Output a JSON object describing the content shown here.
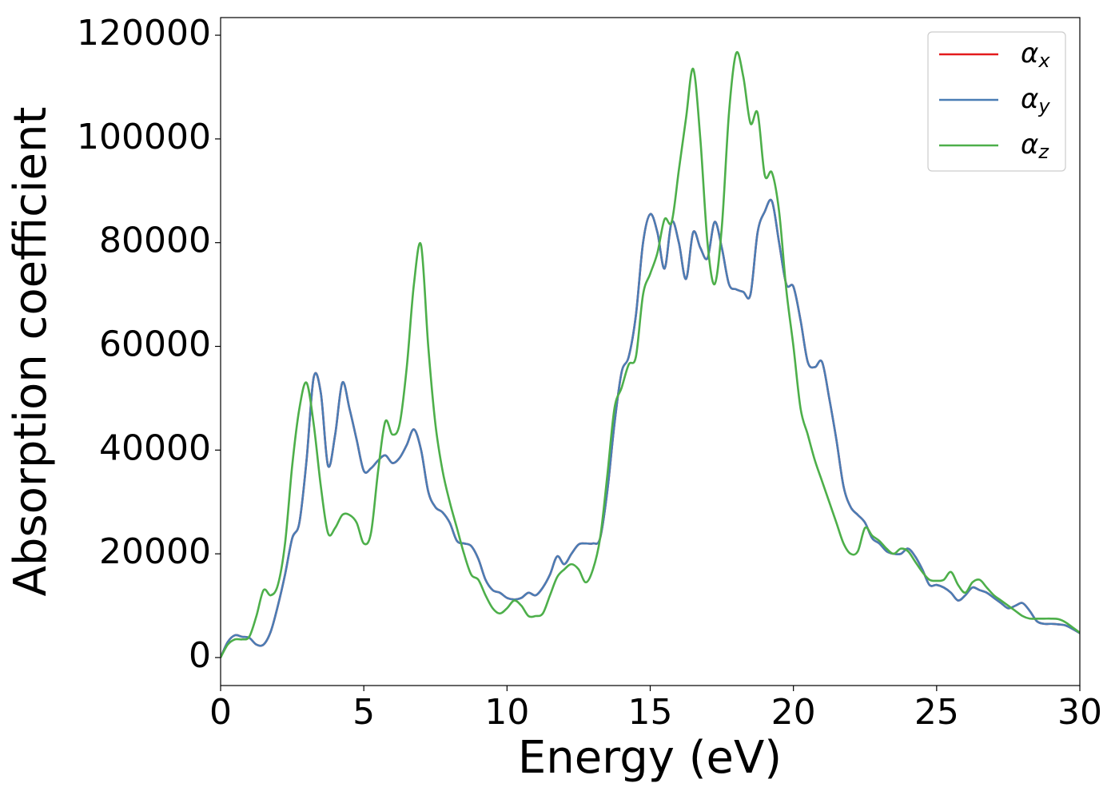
{
  "chart_data": {
    "type": "line",
    "xlabel": "Energy (eV)",
    "ylabel": "Absorption coefficient",
    "x": [
      0,
      0.25,
      0.5,
      0.75,
      1,
      1.25,
      1.5,
      1.75,
      2,
      2.25,
      2.5,
      2.75,
      3,
      3.25,
      3.5,
      3.75,
      4,
      4.25,
      4.5,
      4.75,
      5,
      5.25,
      5.5,
      5.75,
      6,
      6.25,
      6.5,
      6.75,
      7,
      7.25,
      7.5,
      7.75,
      8,
      8.25,
      8.5,
      8.75,
      9,
      9.25,
      9.5,
      9.75,
      10,
      10.25,
      10.5,
      10.75,
      11,
      11.25,
      11.5,
      11.75,
      12,
      12.25,
      12.5,
      12.75,
      13,
      13.25,
      13.5,
      13.75,
      14,
      14.25,
      14.5,
      14.75,
      15,
      15.25,
      15.5,
      15.75,
      16,
      16.25,
      16.5,
      16.75,
      17,
      17.25,
      17.5,
      17.75,
      18,
      18.25,
      18.5,
      18.75,
      19,
      19.25,
      19.5,
      19.75,
      20,
      20.25,
      20.5,
      20.75,
      21,
      21.25,
      21.5,
      21.75,
      22,
      22.25,
      22.5,
      22.75,
      23,
      23.25,
      23.5,
      23.75,
      24,
      24.25,
      24.5,
      24.75,
      25,
      25.25,
      25.5,
      25.75,
      26,
      26.25,
      26.5,
      26.75,
      27,
      27.25,
      27.5,
      27.75,
      28,
      28.25,
      28.5,
      28.75,
      29,
      29.25,
      29.5,
      29.75,
      30
    ],
    "series": [
      {
        "name": "αx",
        "color": "#e41a1c",
        "values": [
          0,
          3000,
          4300,
          4000,
          3800,
          2500,
          2500,
          5000,
          10000,
          16000,
          23000,
          26000,
          38000,
          54000,
          51000,
          37000,
          43000,
          53000,
          48000,
          42000,
          36000,
          36500,
          38000,
          39000,
          37500,
          38500,
          41000,
          44000,
          40000,
          32000,
          29000,
          28000,
          26000,
          22500,
          22000,
          21500,
          19000,
          15000,
          13000,
          12500,
          11500,
          11200,
          11500,
          12500,
          12000,
          13500,
          16000,
          19500,
          18000,
          20000,
          21800,
          22000,
          22000,
          23000,
          32000,
          45000,
          55000,
          58000,
          66000,
          80000,
          85500,
          82000,
          75000,
          84000,
          80000,
          73000,
          82000,
          79000,
          77000,
          84000,
          79000,
          72000,
          71000,
          70500,
          70000,
          82000,
          86000,
          88000,
          80000,
          72000,
          71500,
          65000,
          57000,
          56000,
          57000,
          50000,
          42000,
          33000,
          29000,
          27500,
          26000,
          23000,
          22000,
          20500,
          20000,
          20000,
          21000,
          19500,
          17000,
          14000,
          14000,
          13500,
          12500,
          11000,
          12000,
          13500,
          13000,
          12500,
          11500,
          10500,
          9500,
          10000,
          10500,
          9000,
          7000,
          6500,
          6500,
          6400,
          6200,
          5500,
          4700
        ]
      },
      {
        "name": "αy",
        "color": "#4a7db5",
        "values": [
          0,
          3000,
          4300,
          4000,
          3800,
          2500,
          2500,
          5000,
          10000,
          16000,
          23000,
          26000,
          38000,
          54000,
          51000,
          37000,
          43000,
          53000,
          48000,
          42000,
          36000,
          36500,
          38000,
          39000,
          37500,
          38500,
          41000,
          44000,
          40000,
          32000,
          29000,
          28000,
          26000,
          22500,
          22000,
          21500,
          19000,
          15000,
          13000,
          12500,
          11500,
          11200,
          11500,
          12500,
          12000,
          13500,
          16000,
          19500,
          18000,
          20000,
          21800,
          22000,
          22000,
          23000,
          32000,
          45000,
          55000,
          58000,
          66000,
          80000,
          85500,
          82000,
          75000,
          84000,
          80000,
          73000,
          82000,
          79000,
          77000,
          84000,
          79000,
          72000,
          71000,
          70500,
          70000,
          82000,
          86000,
          88000,
          80000,
          72000,
          71500,
          65000,
          57000,
          56000,
          57000,
          50000,
          42000,
          33000,
          29000,
          27500,
          26000,
          23000,
          22000,
          20500,
          20000,
          20000,
          21000,
          19500,
          17000,
          14000,
          14000,
          13500,
          12500,
          11000,
          12000,
          13500,
          13000,
          12500,
          11500,
          10500,
          9500,
          10000,
          10500,
          9000,
          7000,
          6500,
          6500,
          6400,
          6200,
          5500,
          4700
        ]
      },
      {
        "name": "αz",
        "color": "#4daf4a",
        "values": [
          0,
          2500,
          3500,
          3500,
          4000,
          8000,
          13000,
          12000,
          14000,
          22000,
          37000,
          48000,
          53000,
          45000,
          33000,
          24000,
          25000,
          27500,
          27500,
          26000,
          22000,
          24000,
          36000,
          45500,
          43000,
          45000,
          56000,
          72000,
          79500,
          60000,
          45000,
          36000,
          30000,
          25000,
          20000,
          16000,
          15000,
          12000,
          9500,
          8500,
          9500,
          11000,
          10000,
          8000,
          8000,
          8500,
          12000,
          15500,
          17000,
          18000,
          17000,
          14500,
          17000,
          23000,
          35000,
          48000,
          52000,
          56500,
          58000,
          70000,
          74000,
          78000,
          84500,
          84000,
          94000,
          104000,
          113500,
          100000,
          80000,
          72000,
          83000,
          105000,
          116500,
          112000,
          103000,
          105000,
          93000,
          93500,
          86000,
          71000,
          60000,
          48000,
          43000,
          38000,
          34000,
          30000,
          26000,
          22000,
          20000,
          20500,
          25000,
          23500,
          22500,
          21000,
          20000,
          21000,
          20500,
          18500,
          16500,
          15000,
          14800,
          15000,
          16500,
          14000,
          12500,
          14500,
          15000,
          13500,
          12000,
          11000,
          10000,
          9000,
          8000,
          7500,
          7500,
          7500,
          7500,
          7400,
          6800,
          5800,
          4800
        ]
      }
    ],
    "xlim": [
      0,
      30
    ],
    "xticks": [
      0,
      5,
      10,
      15,
      20,
      25,
      30
    ],
    "ylim": [
      -5400,
      123400
    ],
    "yticks": [
      0,
      20000,
      40000,
      60000,
      80000,
      100000,
      120000
    ],
    "grid": false,
    "legend": "upper right"
  }
}
